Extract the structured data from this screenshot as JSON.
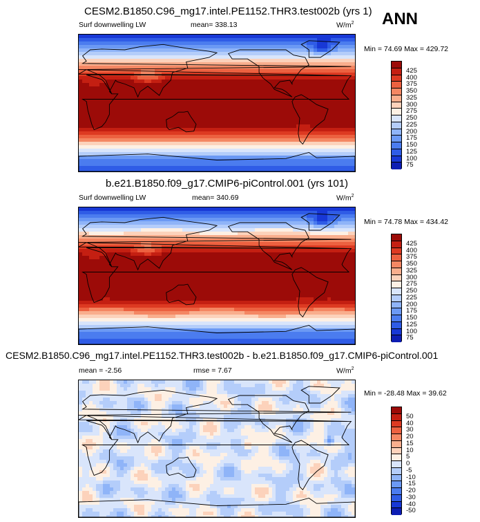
{
  "season": "ANN",
  "colors": {
    "abs": [
      "#08006e",
      "#0d1db3",
      "#1838d6",
      "#2f5ce6",
      "#4b7cef",
      "#6b99f4",
      "#8fb4f8",
      "#b4cdfa",
      "#d9e5fb",
      "#fdf0e4",
      "#fcd2bb",
      "#f9ae8d",
      "#f48763",
      "#ec6140",
      "#dd3a22",
      "#c41f12",
      "#9c0b08",
      "#720001"
    ],
    "diff": [
      "#08006e",
      "#0d1db3",
      "#1838d6",
      "#2f5ce6",
      "#4b7cef",
      "#6b99f4",
      "#8fb4f8",
      "#b4cdfa",
      "#d9e5fb",
      "#fdf0e4",
      "#fcd2bb",
      "#f9ae8d",
      "#f48763",
      "#ec6140",
      "#dd3a22",
      "#c41f12",
      "#9c0b08",
      "#720001"
    ],
    "land_outline": "#000000"
  },
  "chart_data": [
    {
      "type": "heatmap",
      "title": "CESM2.B1850.C96_mg17.intel.PE1152.THR3.test002b (yrs 1)",
      "variable": "Surf downwelling LW",
      "mean_label": "mean= 338.13",
      "units_base": "W/m",
      "units_exp": "2",
      "minmax": "Min =  74.69 Max = 429.72",
      "min": 74.69,
      "max": 429.72,
      "mean": 338.13,
      "colorbar_ticks": [
        "425",
        "400",
        "375",
        "350",
        "325",
        "300",
        "275",
        "250",
        "225",
        "200",
        "175",
        "150",
        "125",
        "100",
        "75"
      ]
    },
    {
      "type": "heatmap",
      "title": "b.e21.B1850.f09_g17.CMIP6-piControl.001 (yrs 101)",
      "variable": "Surf downwelling LW",
      "mean_label": "mean= 340.69",
      "units_base": "W/m",
      "units_exp": "2",
      "minmax": "Min =  74.78 Max = 434.42",
      "min": 74.78,
      "max": 434.42,
      "mean": 340.69,
      "colorbar_ticks": [
        "425",
        "400",
        "375",
        "350",
        "325",
        "300",
        "275",
        "250",
        "225",
        "200",
        "175",
        "150",
        "125",
        "100",
        "75"
      ]
    },
    {
      "type": "heatmap",
      "title": "CESM2.B1850.C96_mg17.intel.PE1152.THR3.test002b - b.e21.B1850.f09_g17.CMIP6-piControl.001",
      "mean_label": "mean =  -2.56",
      "rmse_label": "rmse =   7.67",
      "units_base": "W/m",
      "units_exp": "2",
      "minmax": "Min = -28.48 Max =  39.62",
      "min": -28.48,
      "max": 39.62,
      "mean": -2.56,
      "rmse": 7.67,
      "colorbar_ticks": [
        "50",
        "40",
        "30",
        "20",
        "15",
        "10",
        "5",
        "0",
        "-5",
        "-10",
        "-15",
        "-20",
        "-30",
        "-40",
        "-50"
      ]
    }
  ]
}
